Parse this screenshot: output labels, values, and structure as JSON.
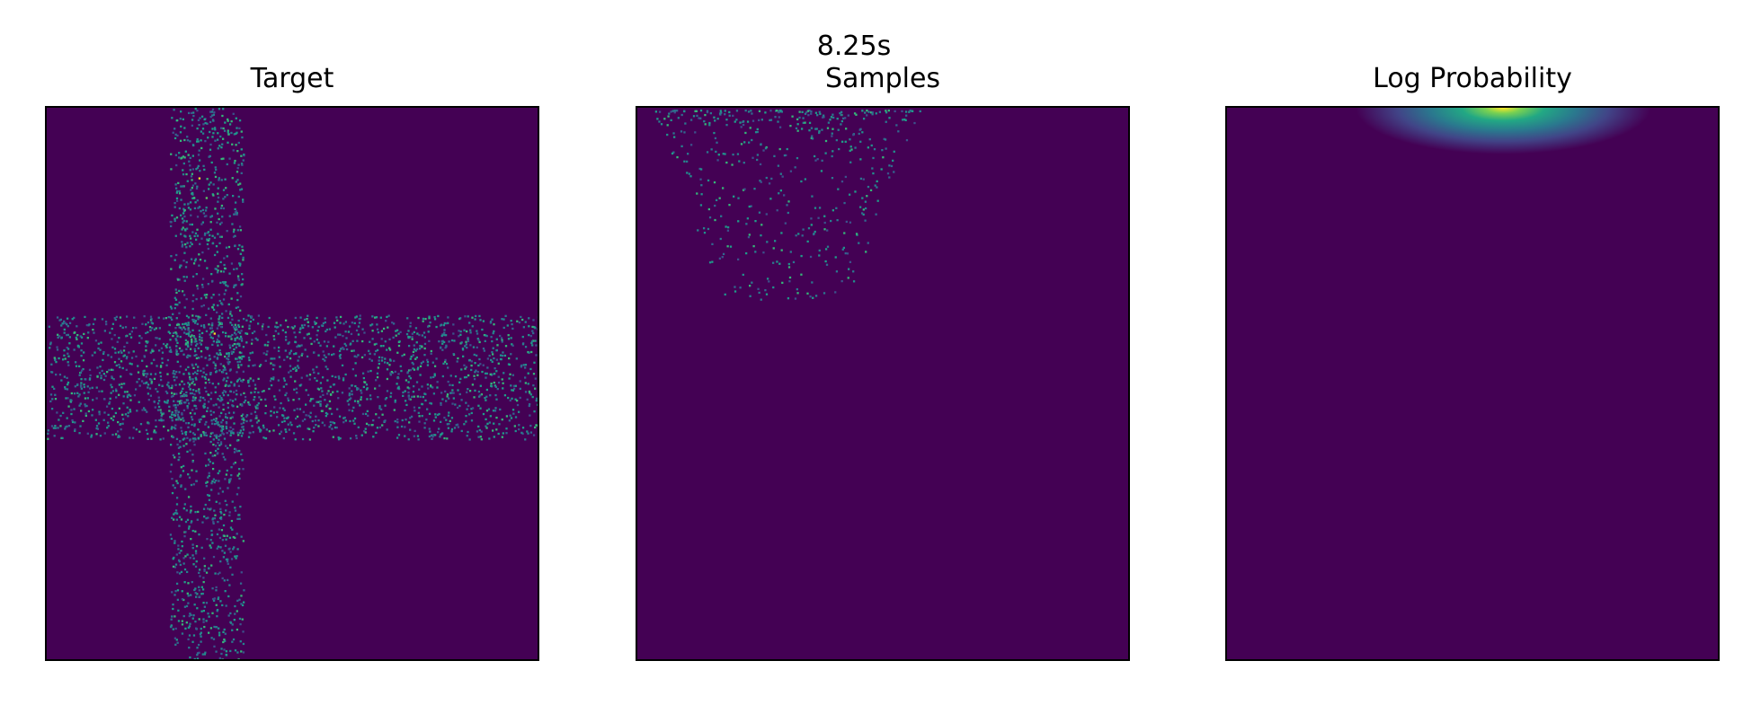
{
  "figure": {
    "suptitle": "8.25s"
  },
  "chart_data": [
    {
      "type": "heatmap",
      "title": "Target",
      "colormap": "viridis",
      "background_color": "#440154",
      "grid": false,
      "axes_ticks": false,
      "xlim": [
        -1,
        1
      ],
      "ylim": [
        -1,
        1
      ],
      "regions": [
        {
          "name": "vertical band",
          "x": [
            -0.5,
            -0.2
          ],
          "y": [
            -1,
            1
          ],
          "density": "sparse speckle"
        },
        {
          "name": "horizontal band",
          "x": [
            -1,
            1
          ],
          "y": [
            -0.2,
            0.25
          ],
          "density": "sparse speckle"
        }
      ]
    },
    {
      "type": "heatmap",
      "title": "Samples",
      "colormap": "viridis",
      "background_color": "#440154",
      "grid": false,
      "axes_ticks": false,
      "xlim": [
        -1,
        1
      ],
      "ylim": [
        -1,
        1
      ],
      "regions": [
        {
          "name": "sample cluster",
          "x": [
            -0.95,
            0.15
          ],
          "y": [
            0.3,
            1
          ],
          "density": "scattered, denser toward top"
        }
      ]
    },
    {
      "type": "heatmap",
      "title": "Log Probability",
      "colormap": "viridis",
      "background_color": "#440154",
      "grid": false,
      "axes_ticks": false,
      "xlim": [
        -1,
        1
      ],
      "ylim": [
        -1,
        1
      ],
      "regions": [
        {
          "name": "probability peak",
          "x": [
            0.1,
            0.15
          ],
          "y": [
            1,
            1
          ],
          "density": "single bright mode at top edge, fading downward"
        }
      ]
    }
  ]
}
